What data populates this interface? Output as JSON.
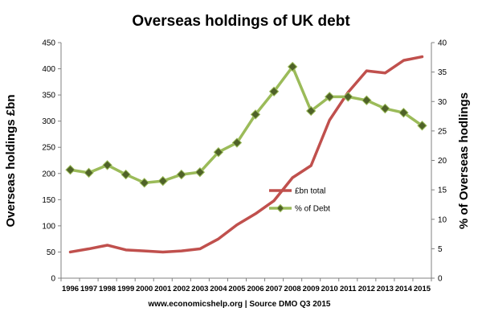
{
  "chart_data": {
    "type": "line",
    "title": "Overseas holdings of UK debt",
    "ylabel": "Overseas holdings £bn",
    "y2label": "% of Overseas hodlings",
    "source": "www.economicshelp.org | Source DMO Q3 2015",
    "ylim": [
      0,
      450
    ],
    "y2lim": [
      0,
      40
    ],
    "grid": false,
    "legend_position": "center-right",
    "x": [
      "1996",
      "1997",
      "1998",
      "1999",
      "2000",
      "2001",
      "2002",
      "2003",
      "2004",
      "2005",
      "2006",
      "2007",
      "2008",
      "2009",
      "2010",
      "2011",
      "2012",
      "2013",
      "2014",
      "2015"
    ],
    "y_ticks": [
      "0",
      "50",
      "100",
      "150",
      "200",
      "250",
      "300",
      "350",
      "400",
      "450"
    ],
    "y2_ticks": [
      "0",
      "5",
      "10",
      "15",
      "20",
      "25",
      "30",
      "35",
      "40"
    ],
    "series": [
      {
        "name": "£bn total",
        "axis": "left",
        "color": "#c0504d",
        "values": [
          50,
          56,
          63,
          54,
          52,
          50,
          52,
          56,
          75,
          102,
          123,
          148,
          192,
          215,
          302,
          355,
          396,
          392,
          416,
          423
        ]
      },
      {
        "name": "% of Debt",
        "axis": "right",
        "color": "#9bbb59",
        "marker_color": "#4f6228",
        "values": [
          18.4,
          17.9,
          19.2,
          17.6,
          16.2,
          16.5,
          17.6,
          18.0,
          21.4,
          23.0,
          27.8,
          31.7,
          35.9,
          28.4,
          30.8,
          30.8,
          30.2,
          28.8,
          28.1,
          25.9
        ]
      }
    ]
  }
}
